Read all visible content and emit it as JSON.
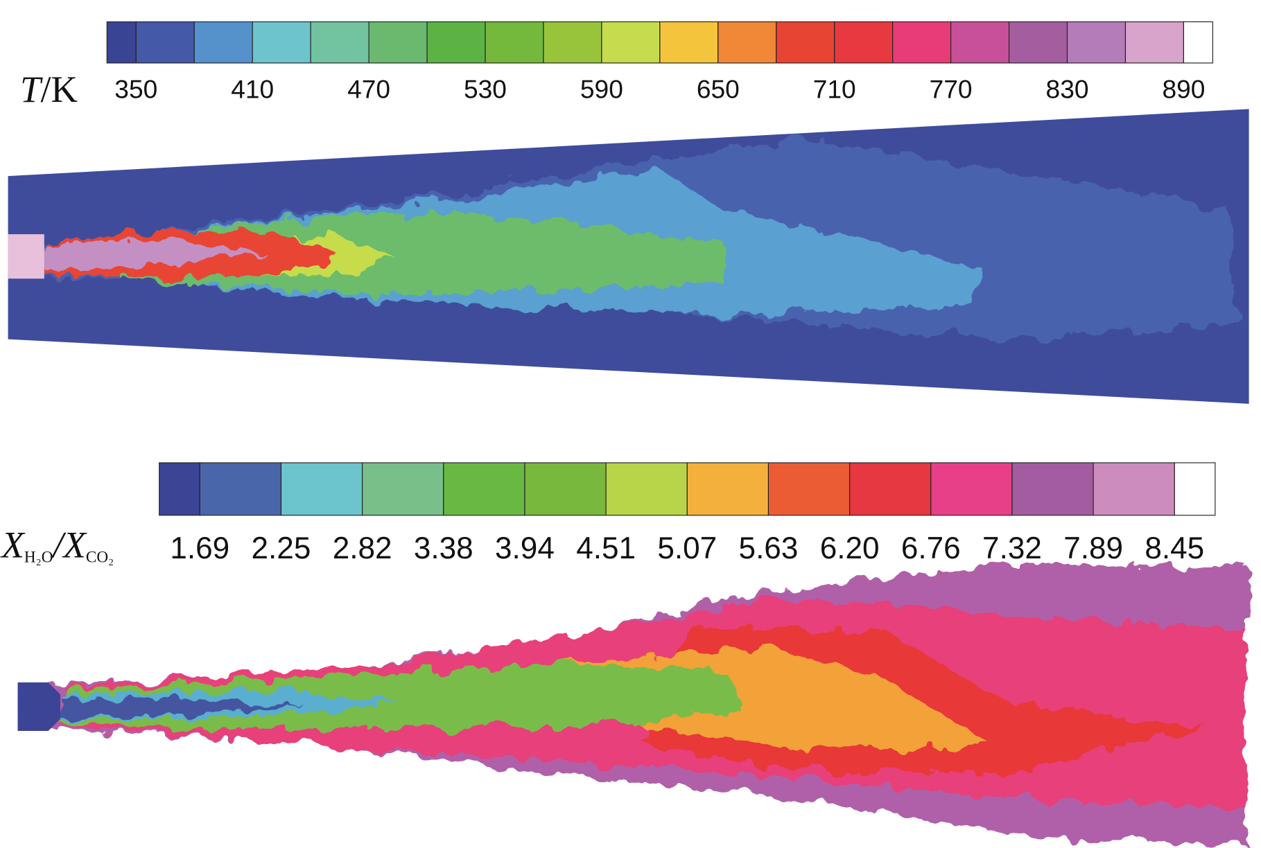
{
  "colorbars": [
    {
      "label": [
        "T",
        "/K"
      ],
      "ticks": [
        "350",
        "410",
        "470",
        "530",
        "590",
        "650",
        "710",
        "770",
        "830",
        "890"
      ],
      "colors": [
        "#3a4494",
        "#4459a8",
        "#5592cc",
        "#6ec4cc",
        "#72c3a0",
        "#6ab96e",
        "#5cb344",
        "#74b83c",
        "#98c43c",
        "#c6dc4c",
        "#f4c43c",
        "#f08838",
        "#e84434",
        "#e83840",
        "#e83c78",
        "#c8509a",
        "#a45ea0",
        "#b47cb8",
        "#d8a4cc",
        "#ffffff"
      ]
    },
    {
      "label": [
        "X",
        "H₂O",
        "/X",
        "CO₂"
      ],
      "ticks": [
        "1.69",
        "2.25",
        "2.82",
        "3.38",
        "3.94",
        "4.51",
        "5.07",
        "5.63",
        "6.20",
        "6.76",
        "7.32",
        "7.89",
        "8.45"
      ],
      "colors": [
        "#3c4496",
        "#4a66aa",
        "#6cc4cc",
        "#78bf8a",
        "#6ab844",
        "#78b83c",
        "#b8d448",
        "#f4b03c",
        "#ec5c34",
        "#e63840",
        "#e84088",
        "#a45ca0",
        "#cc8cbc",
        "#ffffff"
      ]
    }
  ]
}
